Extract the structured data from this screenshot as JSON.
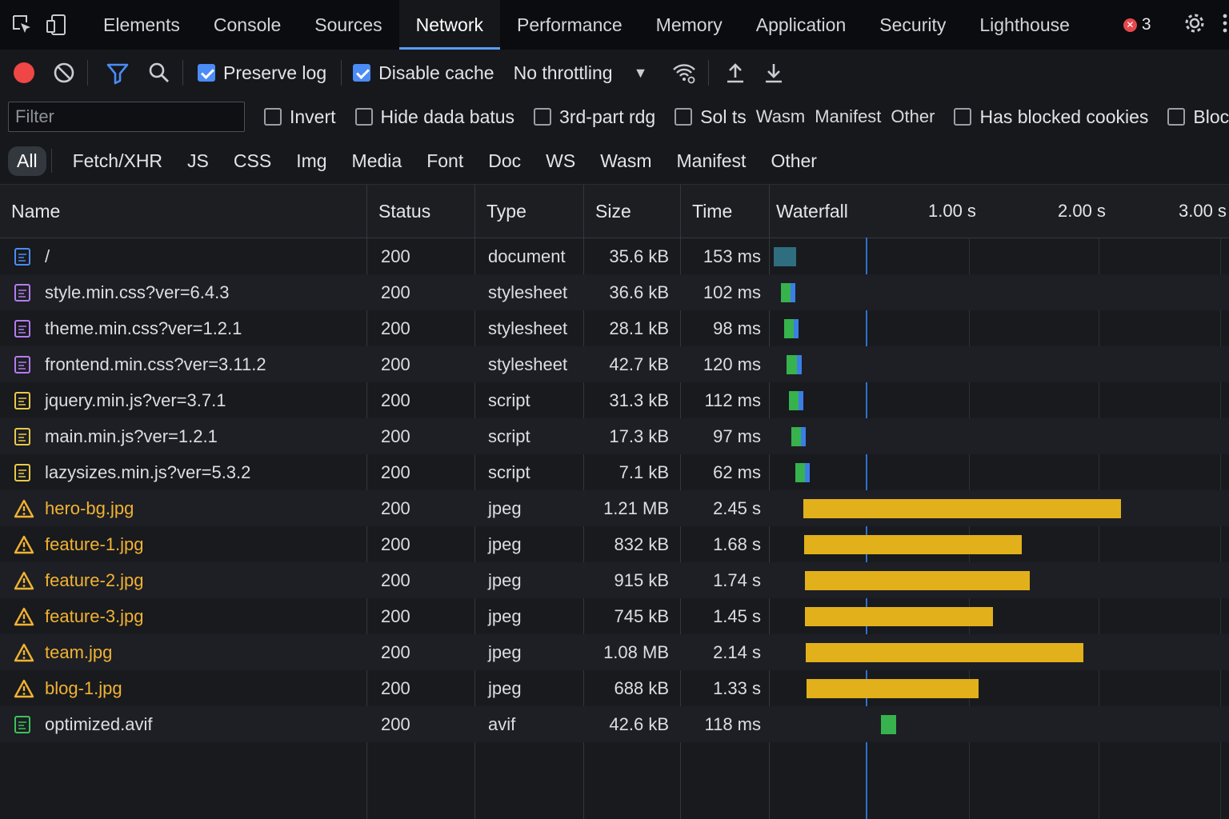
{
  "tabs": {
    "items": [
      "Elements",
      "Console",
      "Sources",
      "Network",
      "Performance",
      "Memory",
      "Application",
      "Security",
      "Lighthouse"
    ],
    "active": "Network",
    "error_count": "3"
  },
  "toolbar": {
    "preserve_log_label": "Preserve log",
    "preserve_log_checked": true,
    "disable_cache_label": "Disable cache",
    "disable_cache_checked": true,
    "throttling_value": "No throttling"
  },
  "filter": {
    "placeholder": "Filter",
    "invert_label": "Invert",
    "hide_data_label": "Hide dada batus",
    "third_party_label": "3rd-part rdg",
    "extra_label": "Sol ts",
    "extra_types": [
      "Wasm",
      "Manifest",
      "Other"
    ],
    "blocked_cookies_label": "Has blocked cookies",
    "blocked_requests_label": "Blocked Requests"
  },
  "type_filters": {
    "items": [
      "All",
      "Fetch/XHR",
      "JS",
      "CSS",
      "Img",
      "Media",
      "Font",
      "Doc",
      "WS",
      "Wasm",
      "Manifest",
      "Other"
    ],
    "active": "All"
  },
  "columns": {
    "name": "Name",
    "status": "Status",
    "type": "Type",
    "size": "Size",
    "time": "Time",
    "waterfall": "Waterfall",
    "ticks": [
      "1.00 s",
      "2.00 s",
      "3.00 s"
    ]
  },
  "colors": {
    "accent": "#4b8cf5",
    "record": "#ef4646",
    "warning_text": "#f2b233",
    "image_bar": "#e2b01a",
    "resource_bar": "#37b24d",
    "document_bar": "#2e6e7e"
  },
  "requests": [
    {
      "name": "/",
      "status": "200",
      "type": "document",
      "size": "35.6 kB",
      "time": "153 ms",
      "icon": "document-icon",
      "kind": "doc",
      "start_s": 0.01,
      "duration_s": 0.153
    },
    {
      "name": "style.min.css?ver=6.4.3",
      "status": "200",
      "type": "stylesheet",
      "size": "36.6 kB",
      "time": "102 ms",
      "icon": "stylesheet-icon",
      "kind": "css",
      "start_s": 0.07,
      "duration_s": 0.102
    },
    {
      "name": "theme.min.css?ver=1.2.1",
      "status": "200",
      "type": "stylesheet",
      "size": "28.1 kB",
      "time": "98 ms",
      "icon": "stylesheet-icon",
      "kind": "css",
      "start_s": 0.09,
      "duration_s": 0.098
    },
    {
      "name": "frontend.min.css?ver=3.11.2",
      "status": "200",
      "type": "stylesheet",
      "size": "42.7 kB",
      "time": "120 ms",
      "icon": "stylesheet-icon",
      "kind": "css",
      "start_s": 0.11,
      "duration_s": 0.12
    },
    {
      "name": "jquery.min.js?ver=3.7.1",
      "status": "200",
      "type": "script",
      "size": "31.3 kB",
      "time": "112 ms",
      "icon": "script-icon",
      "kind": "js",
      "start_s": 0.13,
      "duration_s": 0.112
    },
    {
      "name": "main.min.js?ver=1.2.1",
      "status": "200",
      "type": "script",
      "size": "17.3 kB",
      "time": "97 ms",
      "icon": "script-icon",
      "kind": "js",
      "start_s": 0.15,
      "duration_s": 0.097
    },
    {
      "name": "lazysizes.min.js?ver=5.3.2",
      "status": "200",
      "type": "script",
      "size": "7.1 kB",
      "time": "62 ms",
      "icon": "script-icon",
      "kind": "js",
      "start_s": 0.18,
      "duration_s": 0.062
    },
    {
      "name": "hero-bg.jpg",
      "status": "200",
      "type": "jpeg",
      "size": "1.21 MB",
      "time": "2.45 s",
      "icon": "warning-icon",
      "kind": "img",
      "start_s": 0.24,
      "duration_s": 2.45
    },
    {
      "name": "feature-1.jpg",
      "status": "200",
      "type": "jpeg",
      "size": "832 kB",
      "time": "1.68 s",
      "icon": "warning-icon",
      "kind": "img",
      "start_s": 0.245,
      "duration_s": 1.68
    },
    {
      "name": "feature-2.jpg",
      "status": "200",
      "type": "jpeg",
      "size": "915 kB",
      "time": "1.74 s",
      "icon": "warning-icon",
      "kind": "img",
      "start_s": 0.25,
      "duration_s": 1.74
    },
    {
      "name": "feature-3.jpg",
      "status": "200",
      "type": "jpeg",
      "size": "745 kB",
      "time": "1.45 s",
      "icon": "warning-icon",
      "kind": "img",
      "start_s": 0.255,
      "duration_s": 1.45
    },
    {
      "name": "team.jpg",
      "status": "200",
      "type": "jpeg",
      "size": "1.08 MB",
      "time": "2.14 s",
      "icon": "warning-icon",
      "kind": "img",
      "start_s": 0.26,
      "duration_s": 2.14
    },
    {
      "name": "blog-1.jpg",
      "status": "200",
      "type": "jpeg",
      "size": "688 kB",
      "time": "1.33 s",
      "icon": "warning-icon",
      "kind": "img",
      "start_s": 0.265,
      "duration_s": 1.33
    },
    {
      "name": "optimized.avif",
      "status": "200",
      "type": "avif",
      "size": "42.6 kB",
      "time": "118 ms",
      "icon": "image-icon",
      "kind": "avif",
      "start_s": 0.84,
      "duration_s": 0.118
    }
  ],
  "waterfall": {
    "marker_s": 0.72
  }
}
